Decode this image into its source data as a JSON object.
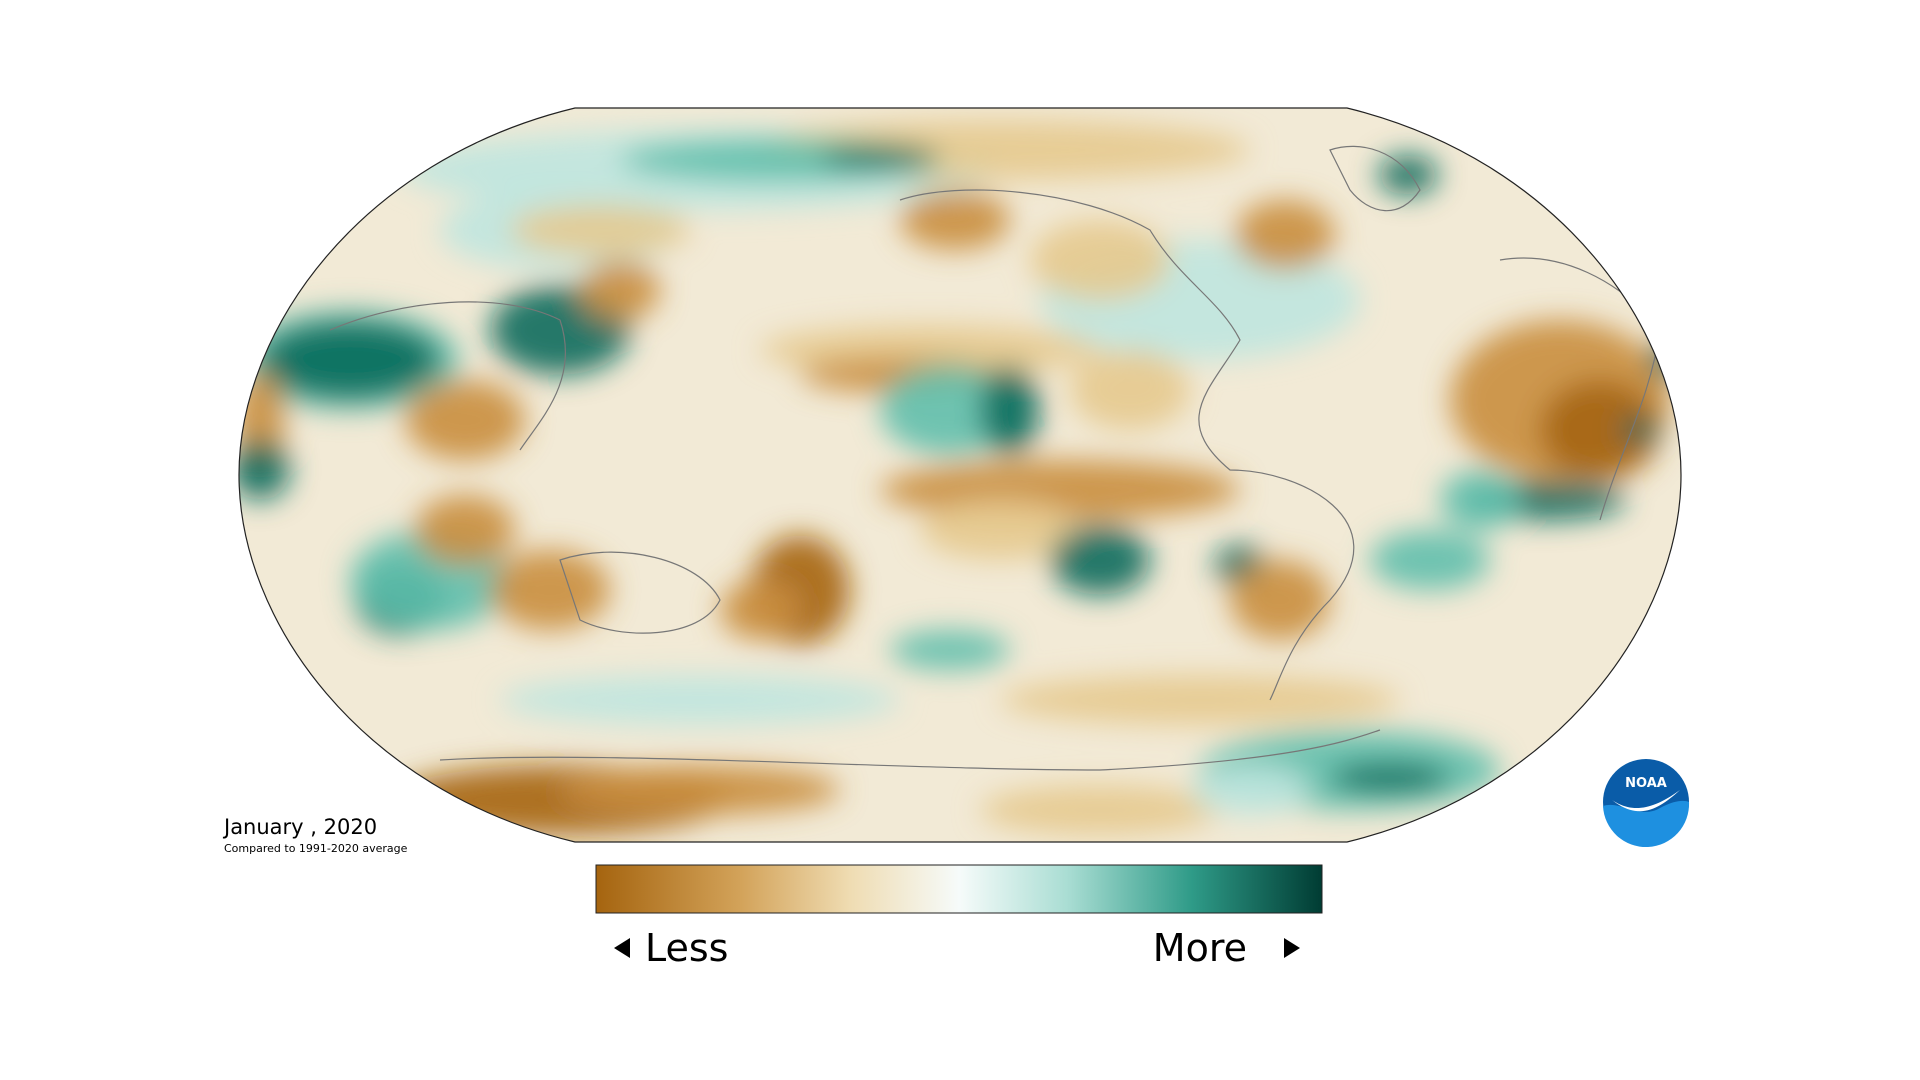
{
  "caption": {
    "date": "January , 2020",
    "baseline": "Compared to 1991-2020 average"
  },
  "legend": {
    "low": "Less",
    "high": "More"
  },
  "logo": "NOAA"
}
